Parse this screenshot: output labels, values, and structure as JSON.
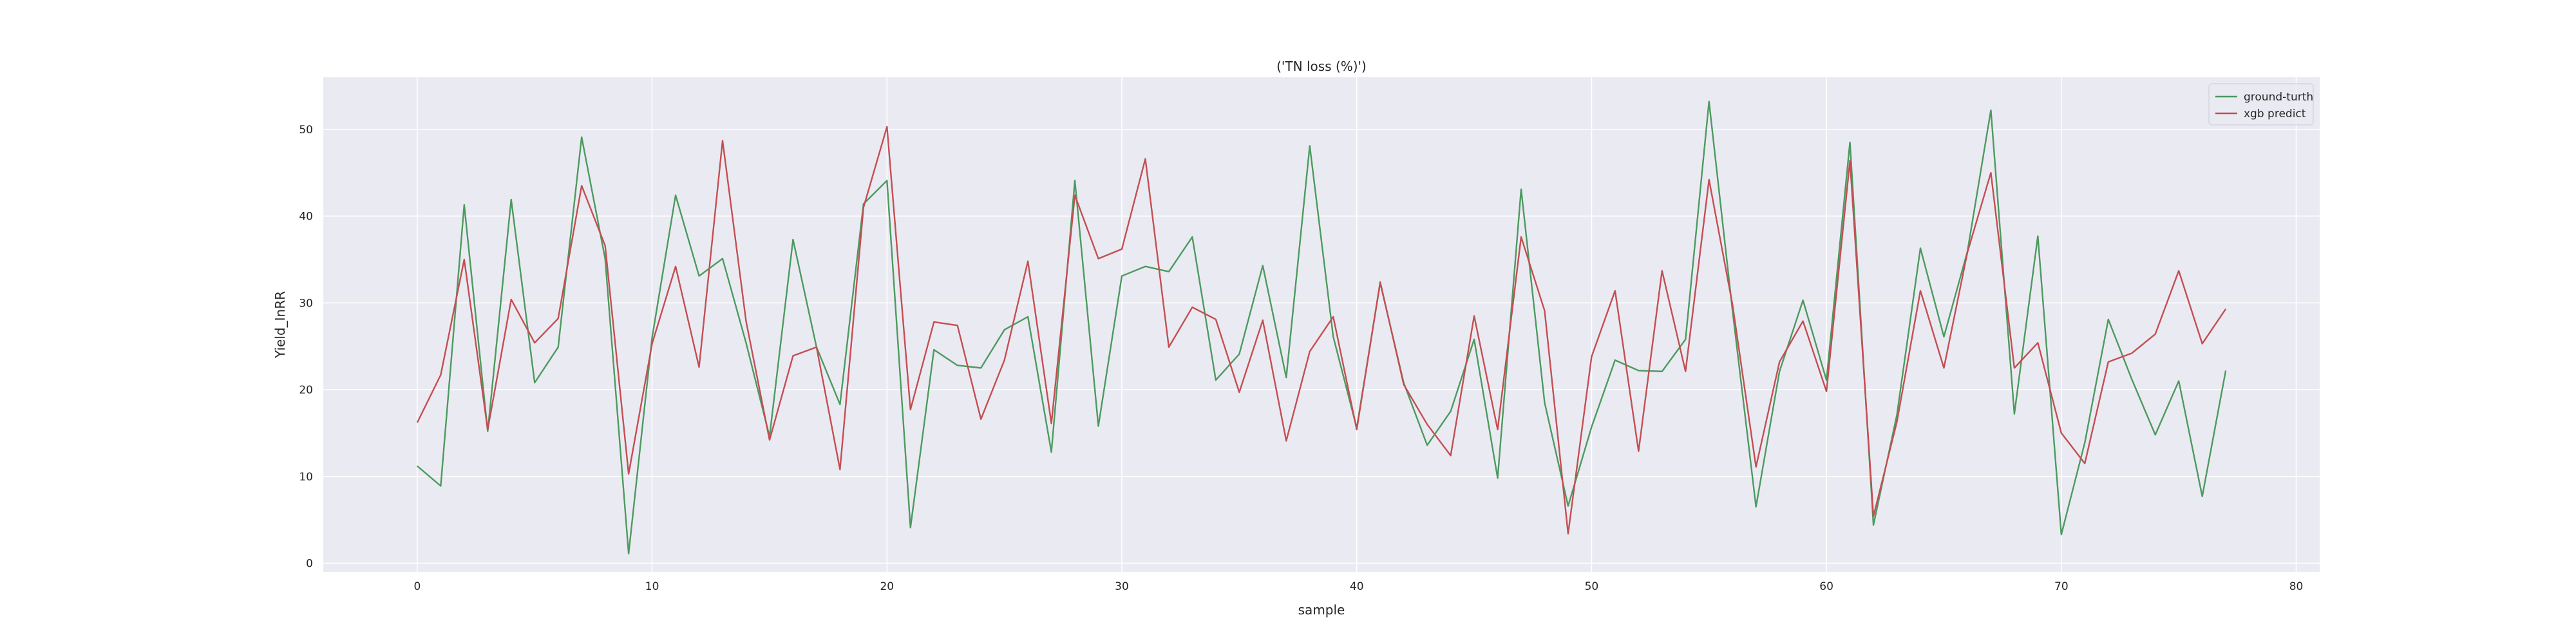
{
  "chart_data": {
    "type": "line",
    "title": "('TN loss (%)')",
    "xlabel": "sample",
    "ylabel": "Yield_InRR",
    "xlim": [
      -4,
      81
    ],
    "ylim": [
      -1,
      56
    ],
    "xticks": [
      0,
      10,
      20,
      30,
      40,
      50,
      60,
      70,
      80
    ],
    "yticks": [
      0,
      10,
      20,
      30,
      40,
      50
    ],
    "grid": true,
    "legend_position": "top-right",
    "colors": {
      "background": "#eaeaf2",
      "grid": "#ffffff",
      "ground_truth": "#4c9a5f",
      "predict": "#c44e52"
    },
    "series": [
      {
        "name": "ground-turth",
        "color": "#4c9a5f",
        "values": [
          11.2,
          8.9,
          41.3,
          15.2,
          41.9,
          20.8,
          24.9,
          49.1,
          35.1,
          1.1,
          26.0,
          42.4,
          33.1,
          35.1,
          25.4,
          14.6,
          37.3,
          24.9,
          18.3,
          41.4,
          44.1,
          4.1,
          24.6,
          22.8,
          22.5,
          26.9,
          28.4,
          12.8,
          44.1,
          15.8,
          33.1,
          34.2,
          33.6,
          37.6,
          21.1,
          24.1,
          34.3,
          21.4,
          48.1,
          26.1,
          15.6,
          32.3,
          20.8,
          13.6,
          17.5,
          25.8,
          9.8,
          43.1,
          18.5,
          6.6,
          15.7,
          23.4,
          22.2,
          22.1,
          25.8,
          53.2,
          29.1,
          6.5,
          22.1,
          30.3,
          21.1,
          48.5,
          4.4,
          17.1,
          36.3,
          26.1,
          35.9,
          52.2,
          17.2,
          37.7,
          3.3,
          13.9,
          28.1,
          21.2,
          14.8,
          21.0,
          7.7,
          22.2
        ]
      },
      {
        "name": "xgb predict",
        "color": "#c44e52",
        "values": [
          16.2,
          21.7,
          35.0,
          15.4,
          30.4,
          25.4,
          28.2,
          43.5,
          36.6,
          10.3,
          25.3,
          34.2,
          22.6,
          48.7,
          27.9,
          14.2,
          23.9,
          24.9,
          10.8,
          41.0,
          50.3,
          17.7,
          27.8,
          27.4,
          16.6,
          23.4,
          34.8,
          16.1,
          42.4,
          35.1,
          36.2,
          46.6,
          24.9,
          29.5,
          28.1,
          19.7,
          28.0,
          14.1,
          24.4,
          28.4,
          15.4,
          32.4,
          20.6,
          16.0,
          12.4,
          28.5,
          15.4,
          37.6,
          29.1,
          3.4,
          23.8,
          31.4,
          12.9,
          33.7,
          22.1,
          44.2,
          29.8,
          11.1,
          23.2,
          27.9,
          19.8,
          46.4,
          5.4,
          16.3,
          31.4,
          22.5,
          35.8,
          45.0,
          22.5,
          25.4,
          15.0,
          11.5,
          23.2,
          24.2,
          26.4,
          33.7,
          25.3,
          29.3
        ]
      }
    ]
  }
}
